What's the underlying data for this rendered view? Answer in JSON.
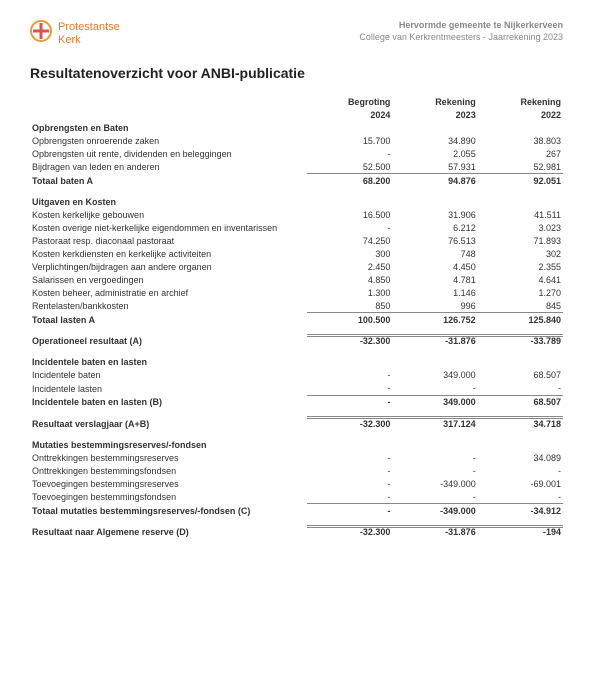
{
  "header": {
    "brand_line1": "Protestantse",
    "brand_line2": "Kerk",
    "org_line1": "Hervormde gemeente te Nijkerkerveen",
    "org_line2": "College van Kerkrentmeesters - Jaarrekening 2023",
    "logo_colors": {
      "outer": "#e89a3c",
      "inner": "#d9534f"
    }
  },
  "title": "Resultatenoverzicht voor ANBI-publicatie",
  "columns": {
    "c1a": "Begroting",
    "c1b": "2024",
    "c2a": "Rekening",
    "c2b": "2023",
    "c3a": "Rekening",
    "c3b": "2022"
  },
  "sections": {
    "baten": {
      "heading": "Opbrengsten en Baten",
      "rows": [
        {
          "label": "Opbrengsten onroerende zaken",
          "v": [
            "15.700",
            "34.890",
            "38.803"
          ]
        },
        {
          "label": "Opbrengsten uit rente, dividenden en beleggingen",
          "v": [
            "-",
            "2.055",
            "267"
          ]
        },
        {
          "label": "Bijdragen van leden en anderen",
          "v": [
            "52.500",
            "57.931",
            "52.981"
          ]
        }
      ],
      "total": {
        "label": "Totaal baten A",
        "v": [
          "68.200",
          "94.876",
          "92.051"
        ]
      }
    },
    "lasten": {
      "heading": "Uitgaven en Kosten",
      "rows": [
        {
          "label": "Kosten kerkelijke gebouwen",
          "v": [
            "16.500",
            "31.906",
            "41.511"
          ]
        },
        {
          "label": "Kosten overige niet-kerkelijke eigendommen en inventarissen",
          "v": [
            "-",
            "6.212",
            "3.023"
          ]
        },
        {
          "label": "Pastoraat resp. diaconaal pastoraat",
          "v": [
            "74.250",
            "76.513",
            "71.893"
          ]
        },
        {
          "label": "Kosten kerkdiensten en kerkelijke activiteiten",
          "v": [
            "300",
            "748",
            "302"
          ]
        },
        {
          "label": "Verplichtingen/bijdragen aan andere organen",
          "v": [
            "2.450",
            "4.450",
            "2.355"
          ]
        },
        {
          "label": "Salarissen en vergoedingen",
          "v": [
            "4.850",
            "4.781",
            "4.641"
          ]
        },
        {
          "label": "Kosten beheer, administratie en archief",
          "v": [
            "1.300",
            "1.146",
            "1.270"
          ]
        },
        {
          "label": "Rentelasten/bankkosten",
          "v": [
            "850",
            "996",
            "845"
          ]
        }
      ],
      "total": {
        "label": "Totaal lasten A",
        "v": [
          "100.500",
          "126.752",
          "125.840"
        ]
      }
    },
    "oper": {
      "label": "Operationeel resultaat (A)",
      "v": [
        "-32.300",
        "-31.876",
        "-33.789"
      ]
    },
    "incid": {
      "heading": "Incidentele baten en lasten",
      "rows": [
        {
          "label": "Incidentele baten",
          "v": [
            "-",
            "349.000",
            "68.507"
          ]
        },
        {
          "label": "Incidentele lasten",
          "v": [
            "-",
            "-",
            "-"
          ]
        }
      ],
      "total": {
        "label": "Incidentele baten en lasten (B)",
        "v": [
          "-",
          "349.000",
          "68.507"
        ]
      }
    },
    "resAB": {
      "label": "Resultaat verslagjaar (A+B)",
      "v": [
        "-32.300",
        "317.124",
        "34.718"
      ]
    },
    "mut": {
      "heading": "Mutaties bestemmingsreserves/-fondsen",
      "rows": [
        {
          "label": "Onttrekkingen bestemmingsreserves",
          "v": [
            "-",
            "-",
            "34.089"
          ]
        },
        {
          "label": "Onttrekkingen bestemmingsfondsen",
          "v": [
            "-",
            "-",
            "-"
          ]
        },
        {
          "label": "Toevoegingen bestemmingsreserves",
          "v": [
            "-",
            "-349.000",
            "-69.001"
          ]
        },
        {
          "label": "Toevoegingen bestemmingsfondsen",
          "v": [
            "-",
            "-",
            "-"
          ]
        }
      ],
      "total": {
        "label": "Totaal mutaties bestemmingsreserves/-fondsen (C)",
        "v": [
          "-",
          "-349.000",
          "-34.912"
        ]
      }
    },
    "resD": {
      "label": "Resultaat naar Algemene reserve (D)",
      "v": [
        "-32.300",
        "-31.876",
        "-194"
      ]
    }
  }
}
